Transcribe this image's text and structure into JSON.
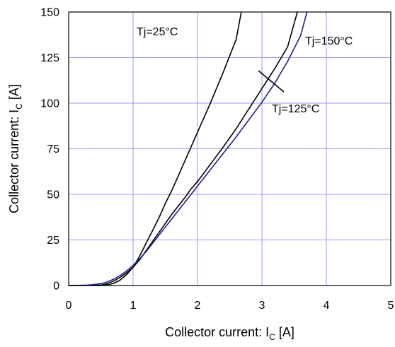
{
  "chart_data": {
    "type": "line",
    "title": "",
    "xlabel": {
      "main": "Collector current: I",
      "sub": "C",
      "unit": " [A]"
    },
    "ylabel": {
      "main": "Collector current: I",
      "sub": "C",
      "unit": " [A]"
    },
    "xlim": [
      0,
      5
    ],
    "ylim": [
      0,
      150
    ],
    "xticks": [
      0,
      1,
      2,
      3,
      4,
      5
    ],
    "yticks": [
      0,
      25,
      50,
      75,
      100,
      125,
      150
    ],
    "xtick_labels": [
      "0",
      "1",
      "2",
      "3",
      "4",
      "5"
    ],
    "ytick_labels": [
      "0",
      "25",
      "50",
      "75",
      "100",
      "125",
      "150"
    ],
    "grid": true,
    "grid_color": "#9999ff",
    "annotations": [
      {
        "text": "Tj=25°C",
        "series": 0
      },
      {
        "text": "Tj=150°C",
        "series": 2
      },
      {
        "text": "Tj=125°C",
        "series": 1
      }
    ],
    "series": [
      {
        "color": "#000000",
        "points": [
          [
            0,
            0
          ],
          [
            0.5,
            0
          ],
          [
            0.6,
            0.3
          ],
          [
            0.7,
            1.2
          ],
          [
            0.8,
            3
          ],
          [
            0.9,
            6
          ],
          [
            1.0,
            10
          ],
          [
            1.1,
            16
          ],
          [
            1.2,
            23
          ],
          [
            1.3,
            30
          ],
          [
            1.4,
            37
          ],
          [
            1.5,
            45
          ],
          [
            1.6,
            52
          ],
          [
            1.7,
            60
          ],
          [
            1.8,
            68
          ],
          [
            1.9,
            76
          ],
          [
            2.0,
            84
          ],
          [
            2.2,
            100
          ],
          [
            2.4,
            117
          ],
          [
            2.6,
            135
          ],
          [
            2.68,
            150
          ]
        ]
      },
      {
        "color": "#000000",
        "points": [
          [
            0,
            0
          ],
          [
            0.5,
            0.2
          ],
          [
            0.6,
            1
          ],
          [
            0.7,
            2.5
          ],
          [
            0.8,
            4.5
          ],
          [
            0.9,
            7
          ],
          [
            1.0,
            10
          ],
          [
            1.1,
            14
          ],
          [
            1.2,
            19
          ],
          [
            1.3,
            24
          ],
          [
            1.4,
            29
          ],
          [
            1.5,
            34
          ],
          [
            1.6,
            39
          ],
          [
            1.7,
            43.5
          ],
          [
            1.8,
            48
          ],
          [
            1.9,
            53
          ],
          [
            2.0,
            57
          ],
          [
            2.2,
            66.5
          ],
          [
            2.4,
            76
          ],
          [
            2.6,
            86
          ],
          [
            2.8,
            97
          ],
          [
            3.0,
            108
          ],
          [
            3.2,
            119
          ],
          [
            3.4,
            131
          ],
          [
            3.55,
            150
          ]
        ]
      },
      {
        "color": "#1f1f8f",
        "points": [
          [
            0,
            0
          ],
          [
            0.3,
            0.2
          ],
          [
            0.5,
            1
          ],
          [
            0.6,
            2
          ],
          [
            0.7,
            3.5
          ],
          [
            0.8,
            5.5
          ],
          [
            0.9,
            8
          ],
          [
            1.0,
            11
          ],
          [
            1.1,
            14.5
          ],
          [
            1.2,
            18.5
          ],
          [
            1.3,
            23
          ],
          [
            1.4,
            27.5
          ],
          [
            1.5,
            32
          ],
          [
            1.6,
            36.5
          ],
          [
            1.7,
            41
          ],
          [
            1.8,
            45.5
          ],
          [
            1.9,
            50
          ],
          [
            2.0,
            54.5
          ],
          [
            2.2,
            63.5
          ],
          [
            2.4,
            72.5
          ],
          [
            2.6,
            81.5
          ],
          [
            2.8,
            91
          ],
          [
            3.0,
            100.5
          ],
          [
            3.2,
            111
          ],
          [
            3.4,
            123
          ],
          [
            3.6,
            137
          ],
          [
            3.7,
            150
          ]
        ]
      }
    ]
  }
}
